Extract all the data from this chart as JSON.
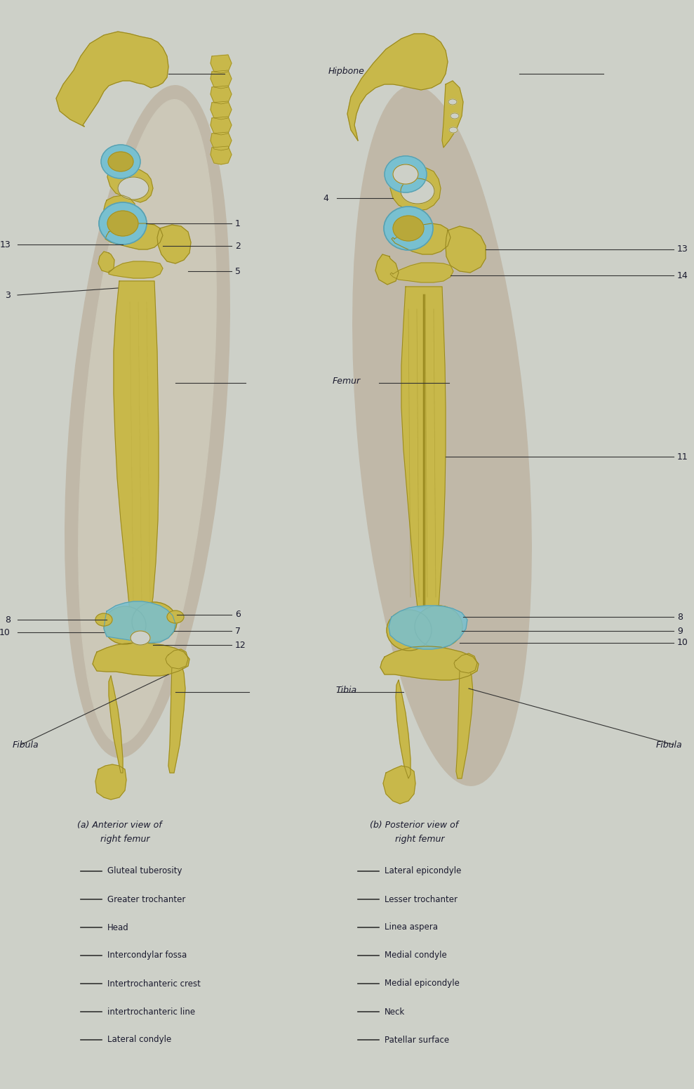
{
  "bg_color": "#cdd0c8",
  "bone_color": "#c8b84a",
  "bone_mid": "#b8a83a",
  "bone_dark": "#988820",
  "bone_shadow": "#887810",
  "cartilage": "#78c0d0",
  "cartilage_dark": "#58a0b0",
  "text_color": "#1a1a2e",
  "line_color": "#333333",
  "fig_width": 9.89,
  "fig_height": 15.5,
  "dpi": 100,
  "caption_left": "(a) Anterior view of\n    right femur",
  "caption_right": "(b) Posterior view of\n    right femur",
  "legend_left_items": [
    "Gluteal tuberosity",
    "Greater trochanter",
    "Head",
    "Intercondylar fossa",
    "Intertrochanteric crest",
    "intertrochanteric line",
    "Lateral condyle"
  ],
  "legend_right_items": [
    "Lateral epicondyle",
    "Lesser trochanter",
    "Linea aspera",
    "Medial condyle",
    "Medial epicondyle",
    "Neck",
    "Patellar surface"
  ]
}
